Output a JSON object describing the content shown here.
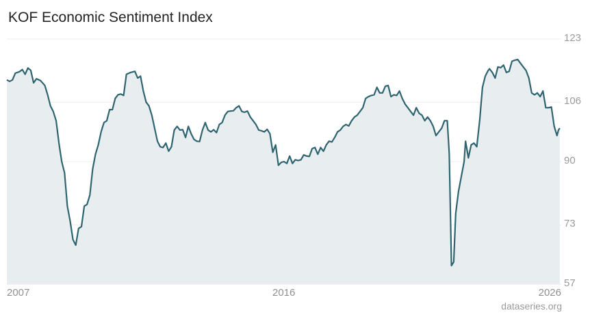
{
  "title": "KOF Economic Sentiment Index",
  "source": "dataseries.org",
  "colors": {
    "line": "#2e6370",
    "area": "#e8eef0",
    "grid": "#ececec",
    "tick_text": "#9a9a9a"
  },
  "chart_data": {
    "type": "area",
    "title": "KOF Economic Sentiment Index",
    "xlabel": "",
    "ylabel": "",
    "x_ticks": [
      "2007",
      "2016",
      "2026"
    ],
    "y_ticks": [
      123,
      106,
      90,
      73,
      57
    ],
    "ylim": [
      57,
      123
    ],
    "xlim": [
      2007.0,
      2026.7
    ],
    "grid": true,
    "series": [
      {
        "values": [
          [
            2007.0,
            112.0
          ],
          [
            2007.1,
            111.6
          ],
          [
            2007.2,
            112.0
          ],
          [
            2007.3,
            113.8
          ],
          [
            2007.45,
            114.2
          ],
          [
            2007.55,
            114.8
          ],
          [
            2007.65,
            113.5
          ],
          [
            2007.75,
            115.2
          ],
          [
            2007.85,
            114.6
          ],
          [
            2007.95,
            111.2
          ],
          [
            2008.05,
            112.3
          ],
          [
            2008.2,
            111.8
          ],
          [
            2008.35,
            110.5
          ],
          [
            2008.45,
            108.0
          ],
          [
            2008.55,
            105.0
          ],
          [
            2008.65,
            103.5
          ],
          [
            2008.75,
            101.0
          ],
          [
            2008.85,
            95.0
          ],
          [
            2008.95,
            90.0
          ],
          [
            2009.05,
            87.0
          ],
          [
            2009.15,
            78.0
          ],
          [
            2009.25,
            74.0
          ],
          [
            2009.35,
            69.0
          ],
          [
            2009.45,
            67.5
          ],
          [
            2009.55,
            72.0
          ],
          [
            2009.65,
            72.5
          ],
          [
            2009.75,
            78.0
          ],
          [
            2009.85,
            78.5
          ],
          [
            2009.95,
            81.0
          ],
          [
            2010.05,
            88.0
          ],
          [
            2010.15,
            92.0
          ],
          [
            2010.25,
            94.5
          ],
          [
            2010.35,
            98.0
          ],
          [
            2010.45,
            100.5
          ],
          [
            2010.55,
            101.0
          ],
          [
            2010.65,
            104.0
          ],
          [
            2010.75,
            104.0
          ],
          [
            2010.85,
            107.0
          ],
          [
            2010.95,
            108.0
          ],
          [
            2011.05,
            108.2
          ],
          [
            2011.15,
            107.8
          ],
          [
            2011.25,
            113.5
          ],
          [
            2011.4,
            114.0
          ],
          [
            2011.55,
            114.3
          ],
          [
            2011.65,
            112.5
          ],
          [
            2011.75,
            113.0
          ],
          [
            2011.85,
            109.0
          ],
          [
            2011.95,
            106.0
          ],
          [
            2012.05,
            105.0
          ],
          [
            2012.15,
            102.5
          ],
          [
            2012.25,
            99.0
          ],
          [
            2012.35,
            95.5
          ],
          [
            2012.45,
            94.0
          ],
          [
            2012.55,
            93.8
          ],
          [
            2012.65,
            95.0
          ],
          [
            2012.75,
            92.8
          ],
          [
            2012.85,
            94.0
          ],
          [
            2012.95,
            98.5
          ],
          [
            2013.05,
            99.5
          ],
          [
            2013.15,
            98.5
          ],
          [
            2013.25,
            98.6
          ],
          [
            2013.35,
            96.5
          ],
          [
            2013.45,
            99.5
          ],
          [
            2013.55,
            97.5
          ],
          [
            2013.65,
            96.0
          ],
          [
            2013.75,
            95.5
          ],
          [
            2013.85,
            95.4
          ],
          [
            2013.95,
            98.5
          ],
          [
            2014.05,
            100.5
          ],
          [
            2014.15,
            98.5
          ],
          [
            2014.25,
            98.0
          ],
          [
            2014.35,
            98.6
          ],
          [
            2014.45,
            97.8
          ],
          [
            2014.55,
            100.0
          ],
          [
            2014.65,
            100.5
          ],
          [
            2014.75,
            102.5
          ],
          [
            2014.85,
            103.5
          ],
          [
            2014.95,
            103.6
          ],
          [
            2015.05,
            103.7
          ],
          [
            2015.15,
            104.5
          ],
          [
            2015.25,
            105.0
          ],
          [
            2015.35,
            103.5
          ],
          [
            2015.45,
            103.3
          ],
          [
            2015.55,
            103.6
          ],
          [
            2015.65,
            102.0
          ],
          [
            2015.75,
            101.0
          ],
          [
            2015.85,
            100.0
          ],
          [
            2015.95,
            98.5
          ],
          [
            2016.05,
            98.3
          ],
          [
            2016.15,
            98.0
          ],
          [
            2016.25,
            98.7
          ],
          [
            2016.35,
            97.5
          ],
          [
            2016.45,
            92.5
          ],
          [
            2016.55,
            94.5
          ],
          [
            2016.65,
            89.0
          ],
          [
            2016.75,
            89.8
          ],
          [
            2016.85,
            90.0
          ],
          [
            2016.95,
            89.5
          ],
          [
            2017.05,
            91.5
          ],
          [
            2017.15,
            89.5
          ],
          [
            2017.25,
            90.5
          ],
          [
            2017.35,
            90.3
          ],
          [
            2017.45,
            90.5
          ],
          [
            2017.55,
            91.8
          ],
          [
            2017.65,
            91.5
          ],
          [
            2017.75,
            91.4
          ],
          [
            2017.85,
            93.5
          ],
          [
            2017.95,
            93.8
          ],
          [
            2018.05,
            92.0
          ],
          [
            2018.15,
            93.8
          ],
          [
            2018.25,
            92.8
          ],
          [
            2018.35,
            94.5
          ],
          [
            2018.45,
            95.5
          ],
          [
            2018.55,
            95.3
          ],
          [
            2018.65,
            96.5
          ],
          [
            2018.75,
            98.0
          ],
          [
            2018.85,
            98.5
          ],
          [
            2018.95,
            99.5
          ],
          [
            2019.05,
            100.0
          ],
          [
            2019.15,
            99.6
          ],
          [
            2019.25,
            101.0
          ],
          [
            2019.35,
            102.0
          ],
          [
            2019.45,
            102.5
          ],
          [
            2019.55,
            103.5
          ],
          [
            2019.65,
            104.5
          ],
          [
            2019.75,
            107.0
          ],
          [
            2019.85,
            107.5
          ],
          [
            2019.95,
            107.8
          ],
          [
            2020.05,
            108.0
          ],
          [
            2020.15,
            110.0
          ],
          [
            2020.25,
            108.5
          ],
          [
            2020.35,
            108.5
          ],
          [
            2020.45,
            110.3
          ],
          [
            2020.55,
            110.5
          ],
          [
            2020.65,
            107.5
          ],
          [
            2020.75,
            108.0
          ],
          [
            2020.85,
            107.8
          ],
          [
            2020.95,
            109.0
          ],
          [
            2021.05,
            107.0
          ],
          [
            2021.15,
            105.5
          ],
          [
            2021.25,
            104.5
          ],
          [
            2021.35,
            103.5
          ],
          [
            2021.45,
            102.5
          ],
          [
            2021.55,
            104.5
          ],
          [
            2021.65,
            103.0
          ],
          [
            2021.75,
            102.5
          ],
          [
            2021.85,
            101.0
          ],
          [
            2021.95,
            102.0
          ],
          [
            2022.05,
            101.0
          ],
          [
            2022.15,
            99.5
          ],
          [
            2022.25,
            97.0
          ],
          [
            2022.35,
            98.0
          ],
          [
            2022.45,
            99.0
          ],
          [
            2022.55,
            101.0
          ],
          [
            2022.65,
            101.0
          ],
          [
            2022.72,
            92.0
          ],
          [
            2022.8,
            62.0
          ],
          [
            2022.88,
            63.0
          ],
          [
            2022.95,
            76.0
          ],
          [
            2023.05,
            82.0
          ],
          [
            2023.15,
            86.0
          ],
          [
            2023.25,
            90.0
          ],
          [
            2023.3,
            95.5
          ],
          [
            2023.4,
            91.0
          ],
          [
            2023.5,
            94.5
          ],
          [
            2023.6,
            95.0
          ],
          [
            2023.7,
            94.0
          ],
          [
            2023.8,
            101.0
          ],
          [
            2023.9,
            110.0
          ],
          [
            2024.0,
            113.0
          ],
          [
            2024.1,
            114.5
          ],
          [
            2024.15,
            115.0
          ],
          [
            2024.25,
            114.0
          ],
          [
            2024.35,
            112.5
          ],
          [
            2024.45,
            115.5
          ],
          [
            2024.55,
            115.3
          ],
          [
            2024.65,
            116.0
          ],
          [
            2024.75,
            114.0
          ],
          [
            2024.85,
            114.3
          ],
          [
            2024.95,
            117.0
          ],
          [
            2025.05,
            117.3
          ],
          [
            2025.15,
            117.5
          ],
          [
            2025.25,
            116.5
          ],
          [
            2025.35,
            115.5
          ],
          [
            2025.45,
            114.5
          ],
          [
            2025.55,
            112.5
          ],
          [
            2025.65,
            108.5
          ],
          [
            2025.75,
            108.0
          ],
          [
            2025.85,
            108.5
          ],
          [
            2025.95,
            107.5
          ],
          [
            2026.05,
            109.0
          ],
          [
            2026.15,
            104.5
          ],
          [
            2026.25,
            104.5
          ],
          [
            2026.35,
            104.7
          ],
          [
            2026.45,
            99.5
          ],
          [
            2026.55,
            97.0
          ],
          [
            2026.6,
            98.5
          ],
          [
            2026.65,
            99.0
          ]
        ]
      }
    ]
  }
}
